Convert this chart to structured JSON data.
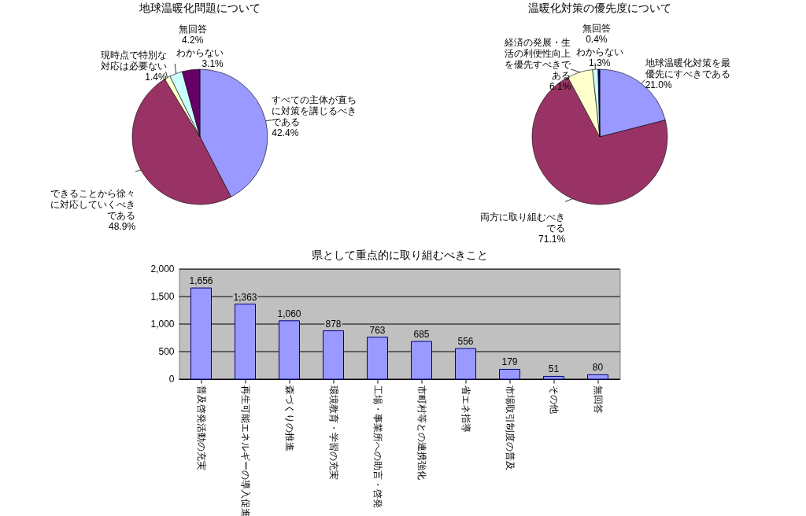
{
  "chart_data": [
    {
      "type": "pie",
      "title": "地球温暖化問題について",
      "categories": [
        "すべての主体が直ちに対策を講じるべきである",
        "できることから徐々に対応していくべきである",
        "現時点で特別な対応は必要ない",
        "わからない",
        "無回答"
      ],
      "values": [
        42.4,
        48.9,
        1.4,
        3.1,
        4.2
      ],
      "value_labels": [
        "42.4%",
        "48.9%",
        "1.4%",
        "3.1%",
        "4.2%"
      ],
      "colors": [
        "#9999ff",
        "#993366",
        "#ffffcc",
        "#ccffff",
        "#660066"
      ]
    },
    {
      "type": "pie",
      "title": "温暖化対策の優先度について",
      "categories": [
        "地球温暖化対策を最優先にすべきである",
        "両方に取り組むべきでる",
        "経済の発展・生活の利便性向上を優先すべきである",
        "わからない",
        "無回答"
      ],
      "values": [
        21.0,
        71.1,
        6.1,
        1.3,
        0.4
      ],
      "value_labels": [
        "21.0%",
        "71.1%",
        "6.1%",
        "1.3%",
        "0.4%"
      ],
      "colors": [
        "#9999ff",
        "#993366",
        "#ffffcc",
        "#ccffff",
        "#000080"
      ]
    },
    {
      "type": "bar",
      "title": "県として重点的に取り組むべきこと",
      "categories": [
        "普及啓発活動の充実",
        "再生可能エネルギーの導入促進",
        "森づくりの推進",
        "環境教育・学習の充実",
        "工場・事業所への助言・啓発",
        "市町村等との連携強化",
        "省エネ指導",
        "市場取引制度の普及",
        "その他",
        "無回答"
      ],
      "values": [
        1656,
        1363,
        1060,
        878,
        763,
        685,
        556,
        179,
        51,
        80
      ],
      "value_labels": [
        "1,656",
        "1,363",
        "1,060",
        "878",
        "763",
        "685",
        "556",
        "179",
        "51",
        "80"
      ],
      "color": "#9999ff",
      "ylim": [
        0,
        2000
      ],
      "yticks": [
        0,
        500,
        {
          "value": 1000,
          "label": "1,000"
        },
        {
          "value": 1500,
          "label": "1,500"
        },
        {
          "value": 2000,
          "label": "2,000"
        }
      ],
      "grid": "y"
    }
  ]
}
